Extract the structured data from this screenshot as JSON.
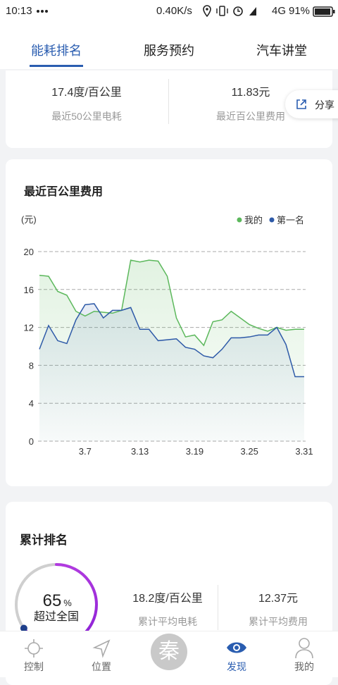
{
  "status_bar": {
    "time": "10:13",
    "speed": "0.40K/s",
    "network": "4G",
    "battery": "91%"
  },
  "tabs": [
    "能耗排名",
    "服务预约",
    "汽车讲堂"
  ],
  "summary": {
    "consumption": "17.4度/百公里",
    "consumption_label": "最近50公里电耗",
    "cost": "11.83元",
    "cost_label": "最近百公里费用",
    "share": "分享"
  },
  "chart_data": {
    "type": "line",
    "title": "最近百公里费用",
    "y_label": "(元)",
    "categories": [
      null,
      null,
      null,
      null,
      null,
      "3.7",
      null,
      null,
      null,
      null,
      null,
      "3.13",
      null,
      null,
      null,
      null,
      null,
      "3.19",
      null,
      null,
      null,
      null,
      null,
      "3.25",
      null,
      null,
      null,
      null,
      null,
      "3.31"
    ],
    "series": [
      {
        "name": "我的",
        "color": "#5cb85c",
        "values": [
          17.5,
          17.4,
          15.8,
          15.4,
          13.7,
          13.2,
          13.7,
          13.6,
          13.5,
          13.8,
          19.1,
          18.9,
          19.1,
          19.0,
          17.4,
          13.0,
          11.0,
          11.2,
          10.1,
          12.6,
          12.8,
          13.7,
          13.0,
          12.3,
          11.9,
          11.6,
          12.0,
          11.7,
          11.8,
          11.8
        ]
      },
      {
        "name": "第一名",
        "color": "#2e5aa8",
        "values": [
          9.7,
          12.2,
          10.6,
          10.3,
          12.8,
          14.4,
          14.5,
          13.0,
          13.8,
          13.8,
          14.1,
          11.8,
          11.8,
          10.6,
          10.7,
          10.8,
          9.9,
          9.7,
          9.0,
          8.8,
          9.7,
          10.9,
          10.9,
          11.0,
          11.2,
          11.2,
          12.0,
          10.2,
          6.8,
          6.8
        ]
      }
    ],
    "ylim": [
      0,
      20
    ],
    "yticks": [
      0,
      4,
      8,
      12,
      16,
      20
    ],
    "grid": true,
    "legend": "top-right"
  },
  "cumulative": {
    "title": "累计排名",
    "ring": {
      "value": 65,
      "unit": "%",
      "label": "超过全国"
    },
    "consumption": "18.2度/百公里",
    "consumption_label": "累计平均电耗",
    "cost": "12.37元",
    "cost_label": "累计平均费用"
  },
  "nav": {
    "items": [
      "控制",
      "位置",
      "发现",
      "我的"
    ],
    "center": "秦"
  }
}
